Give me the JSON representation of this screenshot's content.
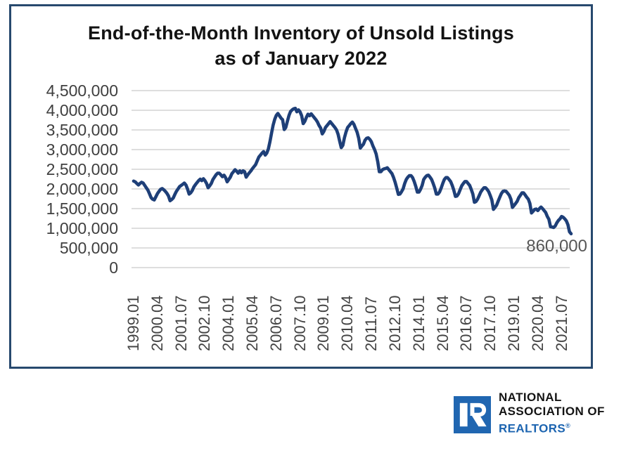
{
  "chart": {
    "title_line1": "End-of-the-Month Inventory of Unsold Listings",
    "title_line2": "as of January 2022",
    "annotation": "860,000"
  },
  "chart_data": {
    "type": "line",
    "title": "End-of-the-Month Inventory of Unsold Listings as of January 2022",
    "xlabel": "",
    "ylabel": "",
    "x_unit": "year.month (monthly series)",
    "x_start": "1999.01",
    "x_end": "2022.01",
    "ylim": [
      0,
      4500000
    ],
    "grid": "horizontal",
    "legend": "none",
    "line_color": "#1e3f78",
    "grid_color": "#d4d4d4",
    "final_value_label": "860,000",
    "y_ticks": [
      0,
      500000,
      1000000,
      1500000,
      2000000,
      2500000,
      3000000,
      3500000,
      4000000,
      4500000
    ],
    "y_tick_labels": [
      "0",
      "500,000",
      "1,000,000",
      "1,500,000",
      "2,000,000",
      "2,500,000",
      "3,000,000",
      "3,500,000",
      "4,000,000",
      "4,500,000"
    ],
    "x_tick_labels": [
      "1999.01",
      "2000.04",
      "2001.07",
      "2002.10",
      "2004.01",
      "2005.04",
      "2006.07",
      "2007.10",
      "2009.01",
      "2010.04",
      "2011.07",
      "2012.10",
      "2014.01",
      "2015.04",
      "2016.07",
      "2017.10",
      "2019.01",
      "2020.04",
      "2021.07"
    ],
    "x_tick_month_indices": [
      0,
      15,
      30,
      45,
      60,
      75,
      90,
      105,
      120,
      135,
      150,
      165,
      180,
      195,
      210,
      225,
      240,
      255,
      270
    ],
    "values": [
      2200000,
      2180000,
      2140000,
      2100000,
      2140000,
      2170000,
      2150000,
      2090000,
      2030000,
      1970000,
      1880000,
      1780000,
      1740000,
      1720000,
      1800000,
      1880000,
      1940000,
      1990000,
      2010000,
      1980000,
      1940000,
      1890000,
      1820000,
      1700000,
      1730000,
      1770000,
      1860000,
      1940000,
      2000000,
      2060000,
      2090000,
      2120000,
      2150000,
      2100000,
      2000000,
      1870000,
      1900000,
      1960000,
      2050000,
      2110000,
      2160000,
      2210000,
      2250000,
      2210000,
      2260000,
      2210000,
      2140000,
      2030000,
      2080000,
      2140000,
      2240000,
      2300000,
      2360000,
      2400000,
      2400000,
      2360000,
      2310000,
      2350000,
      2290000,
      2180000,
      2240000,
      2300000,
      2390000,
      2440000,
      2490000,
      2450000,
      2400000,
      2460000,
      2410000,
      2460000,
      2440000,
      2300000,
      2360000,
      2410000,
      2460000,
      2520000,
      2570000,
      2620000,
      2720000,
      2810000,
      2860000,
      2910000,
      2950000,
      2860000,
      2910000,
      3020000,
      3200000,
      3420000,
      3620000,
      3770000,
      3870000,
      3920000,
      3860000,
      3800000,
      3760000,
      3510000,
      3560000,
      3720000,
      3870000,
      3970000,
      4010000,
      4040000,
      4050000,
      3960000,
      4010000,
      3960000,
      3860000,
      3660000,
      3720000,
      3820000,
      3900000,
      3860000,
      3910000,
      3860000,
      3810000,
      3760000,
      3700000,
      3610000,
      3550000,
      3400000,
      3460000,
      3560000,
      3610000,
      3660000,
      3710000,
      3660000,
      3610000,
      3560000,
      3500000,
      3390000,
      3210000,
      3050000,
      3110000,
      3300000,
      3450000,
      3560000,
      3610000,
      3660000,
      3700000,
      3640000,
      3540000,
      3440000,
      3290000,
      3040000,
      3090000,
      3140000,
      3240000,
      3290000,
      3300000,
      3260000,
      3200000,
      3090000,
      3000000,
      2890000,
      2690000,
      2440000,
      2440000,
      2490000,
      2510000,
      2520000,
      2540000,
      2490000,
      2440000,
      2390000,
      2290000,
      2170000,
      2020000,
      1860000,
      1870000,
      1930000,
      2000000,
      2140000,
      2240000,
      2300000,
      2340000,
      2340000,
      2290000,
      2190000,
      2070000,
      1920000,
      1920000,
      1990000,
      2090000,
      2240000,
      2300000,
      2340000,
      2350000,
      2300000,
      2240000,
      2140000,
      2020000,
      1870000,
      1870000,
      1920000,
      2020000,
      2140000,
      2240000,
      2290000,
      2290000,
      2240000,
      2190000,
      2090000,
      1970000,
      1810000,
      1820000,
      1880000,
      1980000,
      2080000,
      2140000,
      2190000,
      2190000,
      2140000,
      2090000,
      1990000,
      1870000,
      1660000,
      1680000,
      1740000,
      1830000,
      1920000,
      1980000,
      2030000,
      2030000,
      1990000,
      1930000,
      1830000,
      1720000,
      1480000,
      1530000,
      1590000,
      1690000,
      1790000,
      1880000,
      1940000,
      1950000,
      1940000,
      1890000,
      1840000,
      1740000,
      1530000,
      1580000,
      1630000,
      1690000,
      1780000,
      1840000,
      1900000,
      1900000,
      1850000,
      1790000,
      1740000,
      1630000,
      1390000,
      1430000,
      1480000,
      1490000,
      1450000,
      1500000,
      1540000,
      1500000,
      1450000,
      1400000,
      1300000,
      1230000,
      1040000,
      1030000,
      1020000,
      1060000,
      1140000,
      1200000,
      1240000,
      1300000,
      1280000,
      1240000,
      1190000,
      1090000,
      910000,
      860000
    ]
  },
  "logo": {
    "line1": "NATIONAL",
    "line2": "ASSOCIATION OF",
    "line3": "REALTORS",
    "registered_mark": "®",
    "square_color": "#2066b1",
    "text_color": "#141414",
    "realtors_color": "#1c64b0"
  }
}
